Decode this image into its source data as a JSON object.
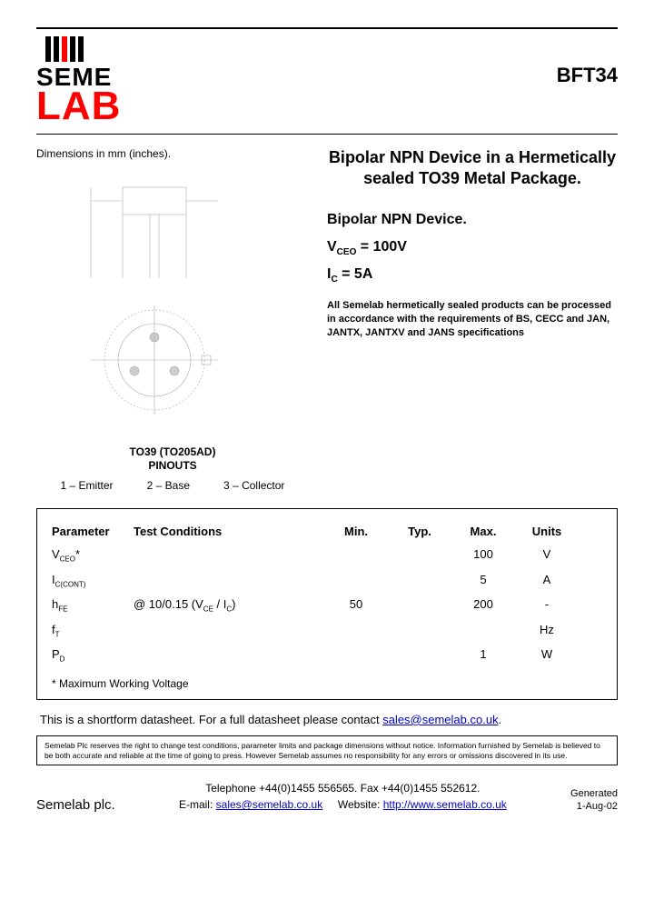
{
  "brand": {
    "line1": "SEME",
    "line2": "LAB",
    "bar_colors": [
      "#000000",
      "#000000",
      "#ff0000",
      "#000000",
      "#000000"
    ],
    "text_color_top": "#000000",
    "text_color_bottom": "#ff0000"
  },
  "part_number": "BFT34",
  "dimensions_label": "Dimensions in mm (inches).",
  "package": {
    "title_line1": "TO39 (TO205AD)",
    "title_line2": "PINOUTS",
    "pins": [
      {
        "num": "1",
        "name": "Emitter"
      },
      {
        "num": "2",
        "name": "Base"
      },
      {
        "num": "3",
        "name": "Collector"
      }
    ]
  },
  "headline": "Bipolar NPN Device in a Hermetically sealed TO39 Metal Package.",
  "subhead": "Bipolar NPN Device.",
  "key_specs": [
    {
      "sym": "V",
      "sub": "CEO",
      "eq": " =  100V"
    },
    {
      "sym": "I",
      "sub": "C",
      "eq": " = 5A"
    }
  ],
  "note": "All Semelab hermetically sealed products can be processed in accordance with the requirements of BS, CECC and JAN, JANTX, JANTXV and JANS specifications",
  "table": {
    "headers": [
      "Parameter",
      "Test Conditions",
      "Min.",
      "Typ.",
      "Max.",
      "Units"
    ],
    "rows": [
      {
        "param": "V",
        "psub": "CEO",
        "star": "*",
        "cond": "",
        "min": "",
        "typ": "",
        "max": "100",
        "unit": "V"
      },
      {
        "param": "I",
        "psub": "C(CONT)",
        "star": "",
        "cond": "",
        "min": "",
        "typ": "",
        "max": "5",
        "unit": "A"
      },
      {
        "param": "h",
        "psub": "FE",
        "star": "",
        "cond": "@ 10/0.15 (V<sub class='subtxt'>CE</sub> / I<sub class='subtxt'>C</sub>)",
        "min": "50",
        "typ": "",
        "max": "200",
        "unit": "-"
      },
      {
        "param": "f",
        "psub": "T",
        "star": "",
        "cond": "",
        "min": "",
        "typ": "",
        "max": "",
        "unit": "Hz"
      },
      {
        "param": "P",
        "psub": "D",
        "star": "",
        "cond": "",
        "min": "",
        "typ": "",
        "max": "1",
        "unit": "W"
      }
    ],
    "footnote": "* Maximum Working Voltage"
  },
  "shortform": {
    "text_before": "This is a shortform datasheet. For a full datasheet please contact ",
    "link_text": "sales@semelab.co.uk",
    "text_after": "."
  },
  "legal": "Semelab Plc reserves the right to change test conditions, parameter limits and package dimensions without notice. Information furnished by Semelab is believed to be both accurate and reliable at the time of going to press. However Semelab assumes no responsibility for any errors or omissions discovered in its use.",
  "footer": {
    "company": "Semelab plc.",
    "phone_line": "Telephone +44(0)1455 556565. Fax +44(0)1455 552612.",
    "email_label": "E-mail: ",
    "email": "sales@semelab.co.uk",
    "website_label": "Website: ",
    "website": "http://www.semelab.co.uk",
    "gen_label": "Generated",
    "gen_date": "1-Aug-02"
  }
}
